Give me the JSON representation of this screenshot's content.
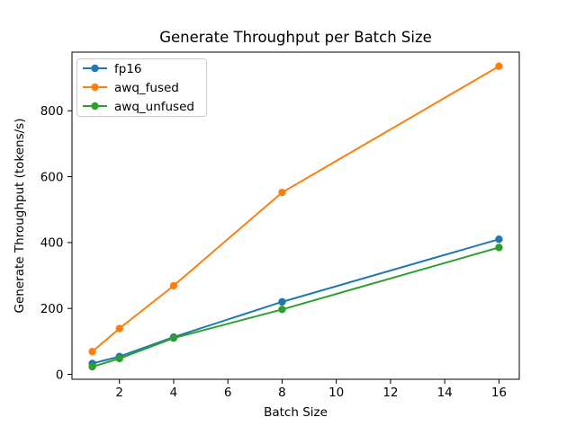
{
  "figure_title": "Generate Throughput per Batch Size",
  "chart_data": {
    "type": "line",
    "title": "Generate Throughput per Batch Size",
    "xlabel": "Batch Size",
    "ylabel": "Generate Throughput (tokens/s)",
    "x": [
      1,
      2,
      4,
      8,
      16
    ],
    "series": [
      {
        "name": "fp16",
        "color": "#1f77b4",
        "values": [
          33,
          54,
          113,
          220,
          410
        ]
      },
      {
        "name": "awq_fused",
        "color": "#ff7f0e",
        "values": [
          69,
          139,
          269,
          552,
          935
        ]
      },
      {
        "name": "awq_unfused",
        "color": "#2ca02c",
        "values": [
          23,
          48,
          110,
          197,
          385
        ]
      }
    ],
    "marker": "o",
    "grid": false,
    "legend_position": "upper left",
    "legend_entries": [
      "fp16",
      "awq_fused",
      "awq_unfused"
    ],
    "xticks": [
      2,
      4,
      6,
      8,
      10,
      12,
      14,
      16
    ],
    "yticks": [
      0,
      200,
      400,
      600,
      800
    ],
    "xlim": [
      0.25,
      16.75
    ],
    "ylim": [
      -15,
      978
    ],
    "axis_color": "#000000",
    "background_color": "#ffffff",
    "legend_border_color": "#cccccc"
  }
}
